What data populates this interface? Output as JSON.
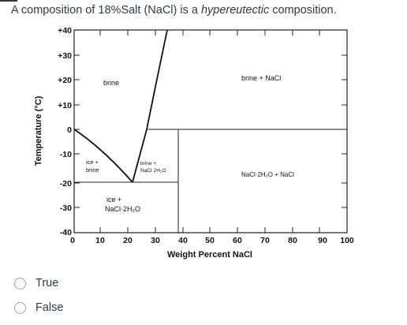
{
  "question": {
    "prefix": "A composition of 18%Salt (NaCl) is a ",
    "emphasis": "hypereutectic",
    "suffix": " composition."
  },
  "diagram": {
    "y_axis_title": "Temperature (°C)",
    "x_axis_title": "Weight Percent NaCl",
    "y_ticks": [
      "+40",
      "+30",
      "+20",
      "+10",
      "0",
      "-10",
      "-20",
      "-30",
      "-40"
    ],
    "x_ticks": [
      "0",
      "10",
      "20",
      "30",
      "40",
      "50",
      "60",
      "70",
      "80",
      "90",
      "100"
    ],
    "regions": {
      "brine": "brine",
      "brine_nacl": "brine + NaCl",
      "ice_brine_1": "ice +",
      "ice_brine_2": "brine",
      "brine_hydrate_1": "brine +",
      "brine_hydrate_2": "NaCl·2H₂O",
      "hydrate_nacl": "NaCl·2H₂O + NaCl",
      "ice_hydrate_1": "ice +",
      "ice_hydrate_2": "NaCl·2H₂O"
    }
  },
  "answers": [
    {
      "label": "True"
    },
    {
      "label": "False"
    }
  ]
}
